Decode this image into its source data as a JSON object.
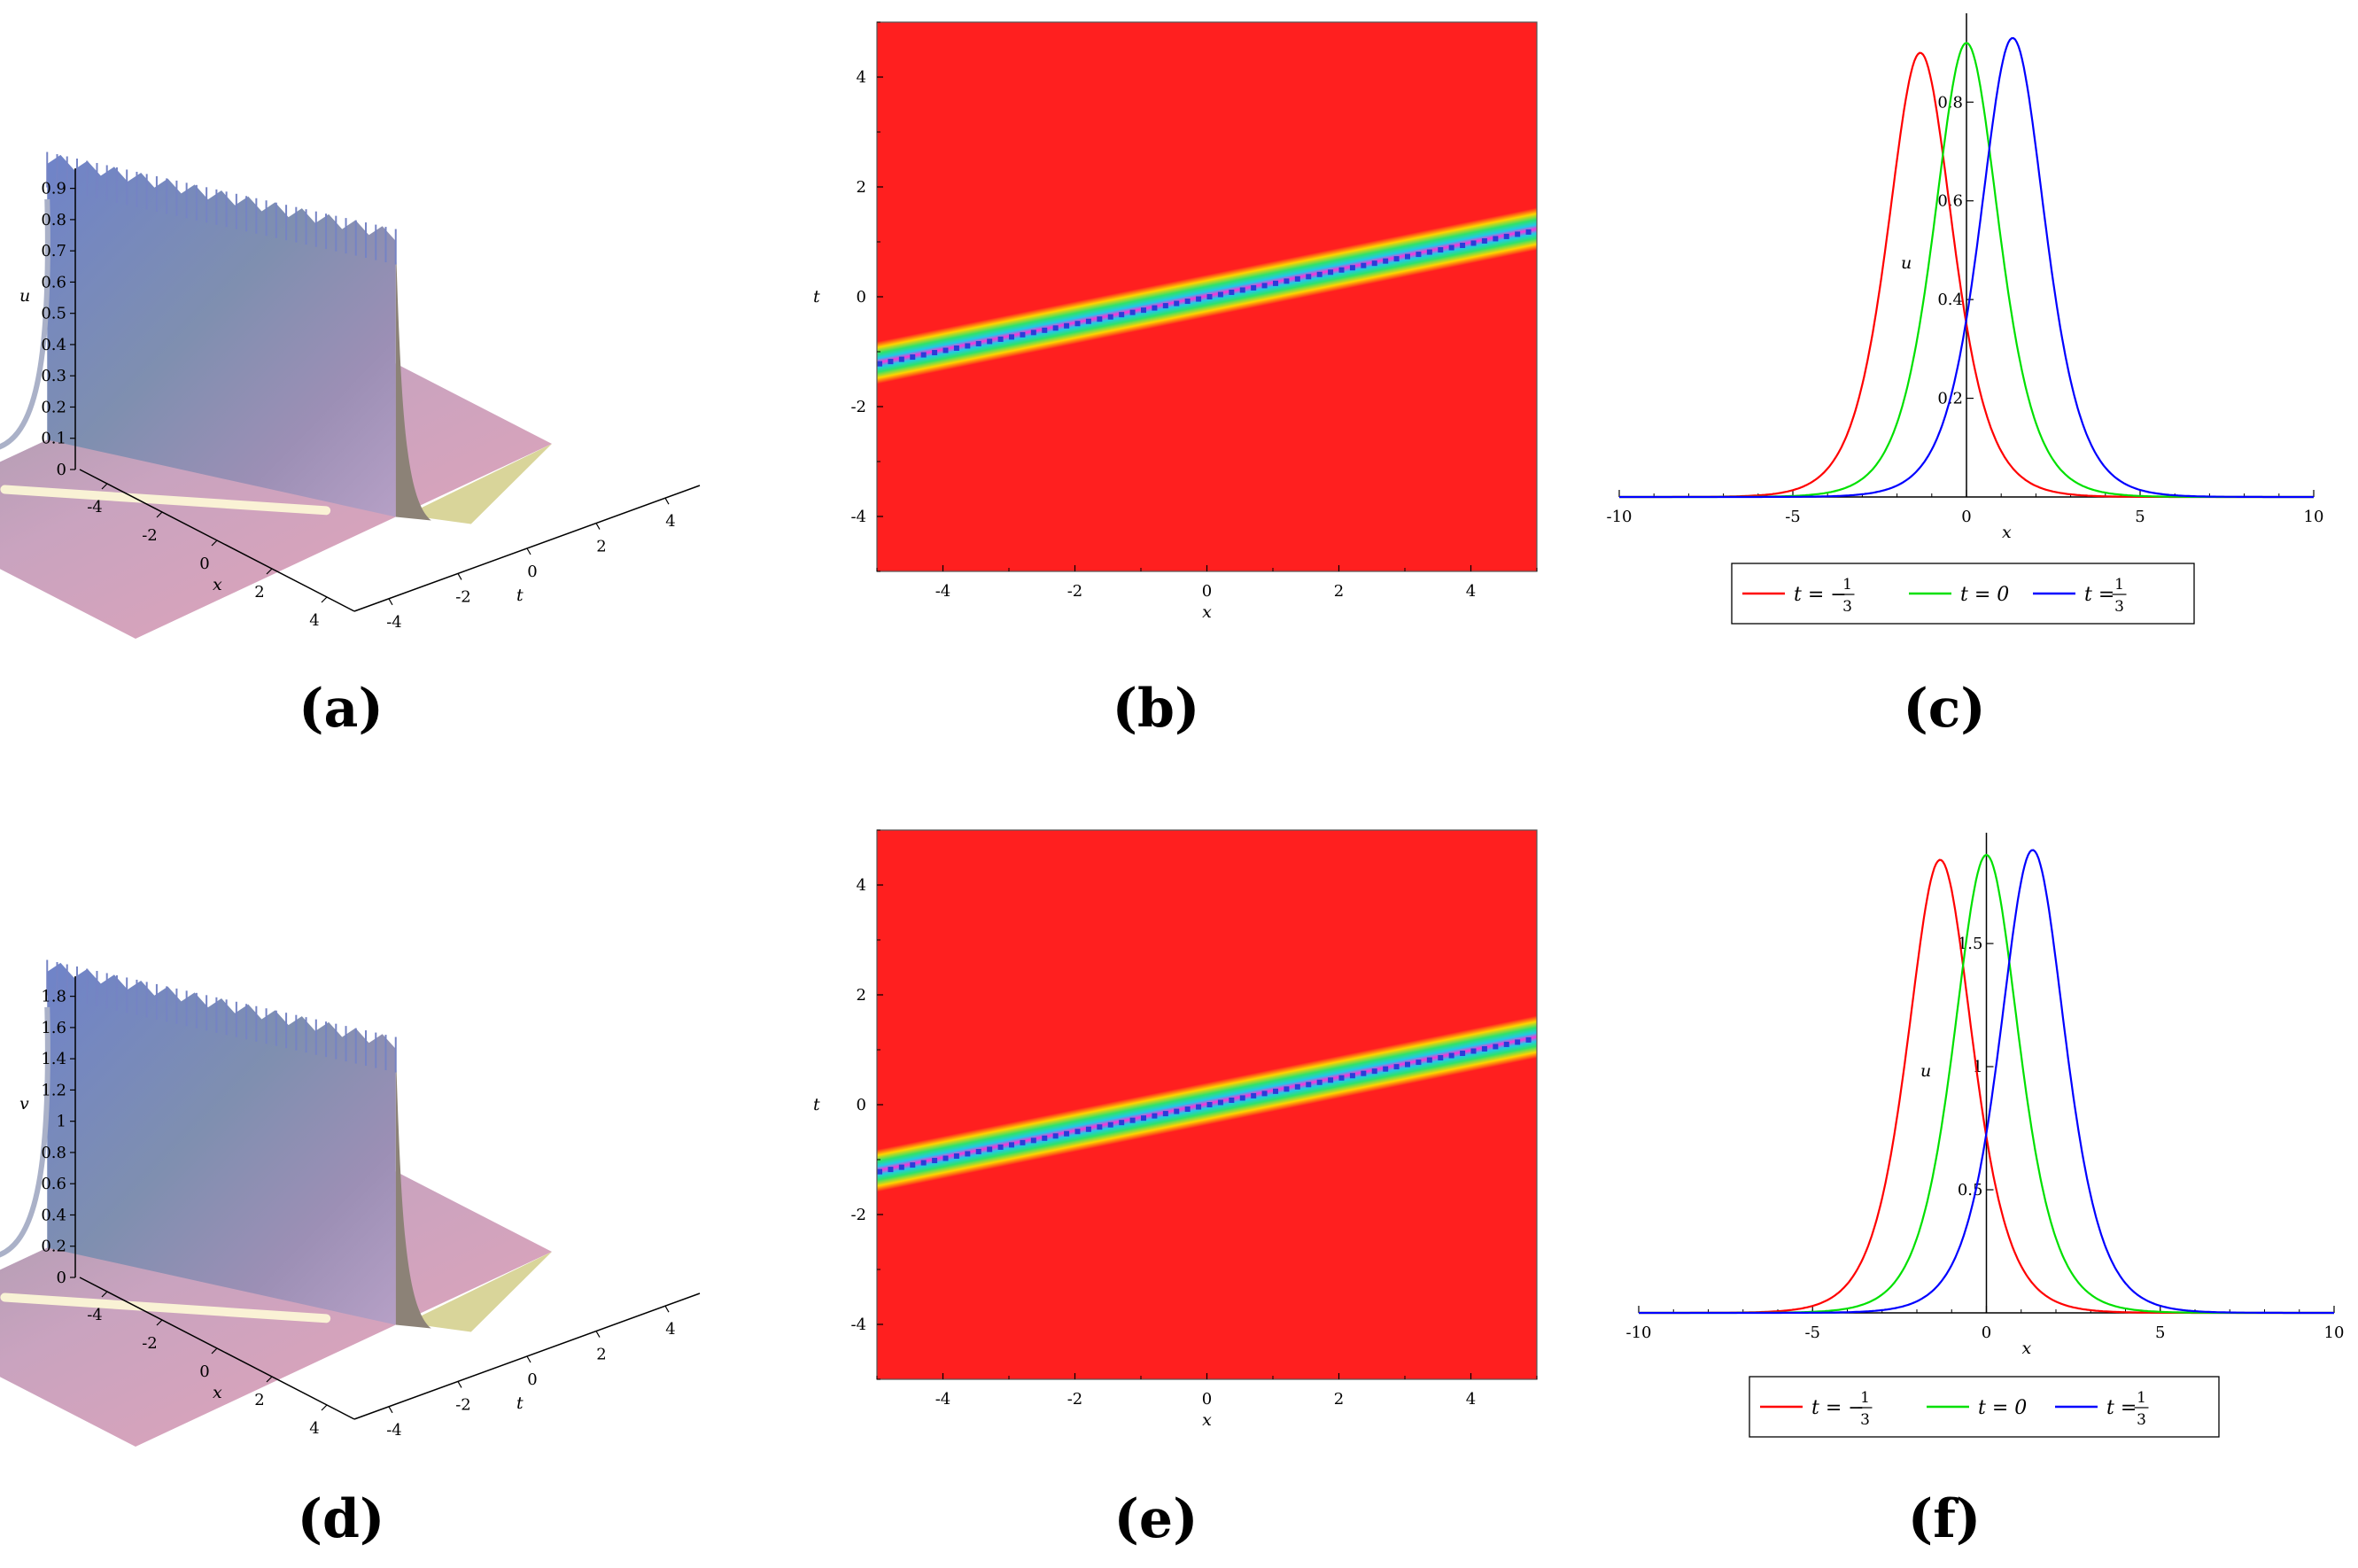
{
  "chart_data": [
    {
      "panel": "(a)",
      "type": "surface3d",
      "x_axis": {
        "label": "x",
        "ticks": [
          "-4",
          "-2",
          "0",
          "2",
          "4"
        ]
      },
      "t_axis": {
        "label": "t",
        "ticks": [
          "-4",
          "-2",
          "0",
          "2",
          "4"
        ]
      },
      "z_axis": {
        "label": "u",
        "ticks": [
          "0",
          "0.1",
          "0.2",
          "0.3",
          "0.4",
          "0.5",
          "0.6",
          "0.7",
          "0.8",
          "0.9"
        ],
        "max": 0.95
      },
      "peak_line": "t = x/4"
    },
    {
      "panel": "(b)",
      "type": "heatmap",
      "xlabel": "x",
      "ylabel": "t",
      "x_ticks": [
        "-4",
        "-2",
        "0",
        "2",
        "4"
      ],
      "y_ticks": [
        "-4",
        "-2",
        "0",
        "2",
        "4"
      ],
      "xlim": [
        -5,
        5
      ],
      "ylim": [
        -5,
        5
      ],
      "band": {
        "t_at_x_minus5": -1.22,
        "t_at_x_5": 1.22,
        "half_width": 0.38
      },
      "background_color": "#ff1f1f"
    },
    {
      "panel": "(c)",
      "type": "line",
      "xlabel": "x",
      "ylabel": "u",
      "x_ticks": [
        "-10",
        "-5",
        "0",
        "5",
        "10"
      ],
      "y_ticks": [
        "0.2",
        "0.4",
        "0.6",
        "0.8"
      ],
      "xlim": [
        -10,
        10
      ],
      "ylim": [
        0,
        0.98
      ],
      "series": [
        {
          "name": "t = -1/3",
          "color": "#ff0000",
          "center": -1.33,
          "peak": 0.9
        },
        {
          "name": "t = 0",
          "color": "#00e000",
          "center": 0,
          "peak": 0.92
        },
        {
          "name": "t = 1/3",
          "color": "#0000ff",
          "center": 1.33,
          "peak": 0.93
        }
      ],
      "legend": {
        "entries": [
          {
            "prefix": "t = −",
            "num": "1",
            "den": "3",
            "color": "#ff0000"
          },
          {
            "prefix": "t = 0",
            "num": "",
            "den": "",
            "color": "#00e000"
          },
          {
            "prefix": "t =",
            "num": "1",
            "den": "3",
            "color": "#0000ff"
          }
        ]
      }
    },
    {
      "panel": "(d)",
      "type": "surface3d",
      "x_axis": {
        "label": "x",
        "ticks": [
          "-4",
          "-2",
          "0",
          "2",
          "4"
        ]
      },
      "t_axis": {
        "label": "t",
        "ticks": [
          "-4",
          "-2",
          "0",
          "2",
          "4"
        ]
      },
      "z_axis": {
        "label": "v",
        "ticks": [
          "0",
          "0.2",
          "0.4",
          "0.6",
          "0.8",
          "1",
          "1.2",
          "1.4",
          "1.6",
          "1.8"
        ],
        "max": 1.9
      },
      "peak_line": "t = x/4"
    },
    {
      "panel": "(e)",
      "type": "heatmap",
      "xlabel": "x",
      "ylabel": "t",
      "x_ticks": [
        "-4",
        "-2",
        "0",
        "2",
        "4"
      ],
      "y_ticks": [
        "-4",
        "-2",
        "0",
        "2",
        "4"
      ],
      "xlim": [
        -5,
        5
      ],
      "ylim": [
        -5,
        5
      ],
      "band": {
        "t_at_x_minus5": -1.22,
        "t_at_x_5": 1.22,
        "half_width": 0.38
      },
      "background_color": "#ff1f1f"
    },
    {
      "panel": "(f)",
      "type": "line",
      "xlabel": "x",
      "ylabel": "u",
      "x_ticks": [
        "-10",
        "-5",
        "0",
        "5",
        "10"
      ],
      "y_ticks": [
        "0.5",
        "1",
        "1.5"
      ],
      "xlim": [
        -10,
        10
      ],
      "ylim": [
        0,
        1.95
      ],
      "series": [
        {
          "name": "t = -1/3",
          "color": "#ff0000",
          "center": -1.33,
          "peak": 1.84
        },
        {
          "name": "t = 0",
          "color": "#00e000",
          "center": 0,
          "peak": 1.86
        },
        {
          "name": "t = 1/3",
          "color": "#0000ff",
          "center": 1.33,
          "peak": 1.88
        }
      ],
      "legend": {
        "entries": [
          {
            "prefix": "t = −",
            "num": "1",
            "den": "3",
            "color": "#ff0000"
          },
          {
            "prefix": "t = 0",
            "num": "",
            "den": "",
            "color": "#00e000"
          },
          {
            "prefix": "t =",
            "num": "1",
            "den": "3",
            "color": "#0000ff"
          }
        ]
      }
    }
  ]
}
